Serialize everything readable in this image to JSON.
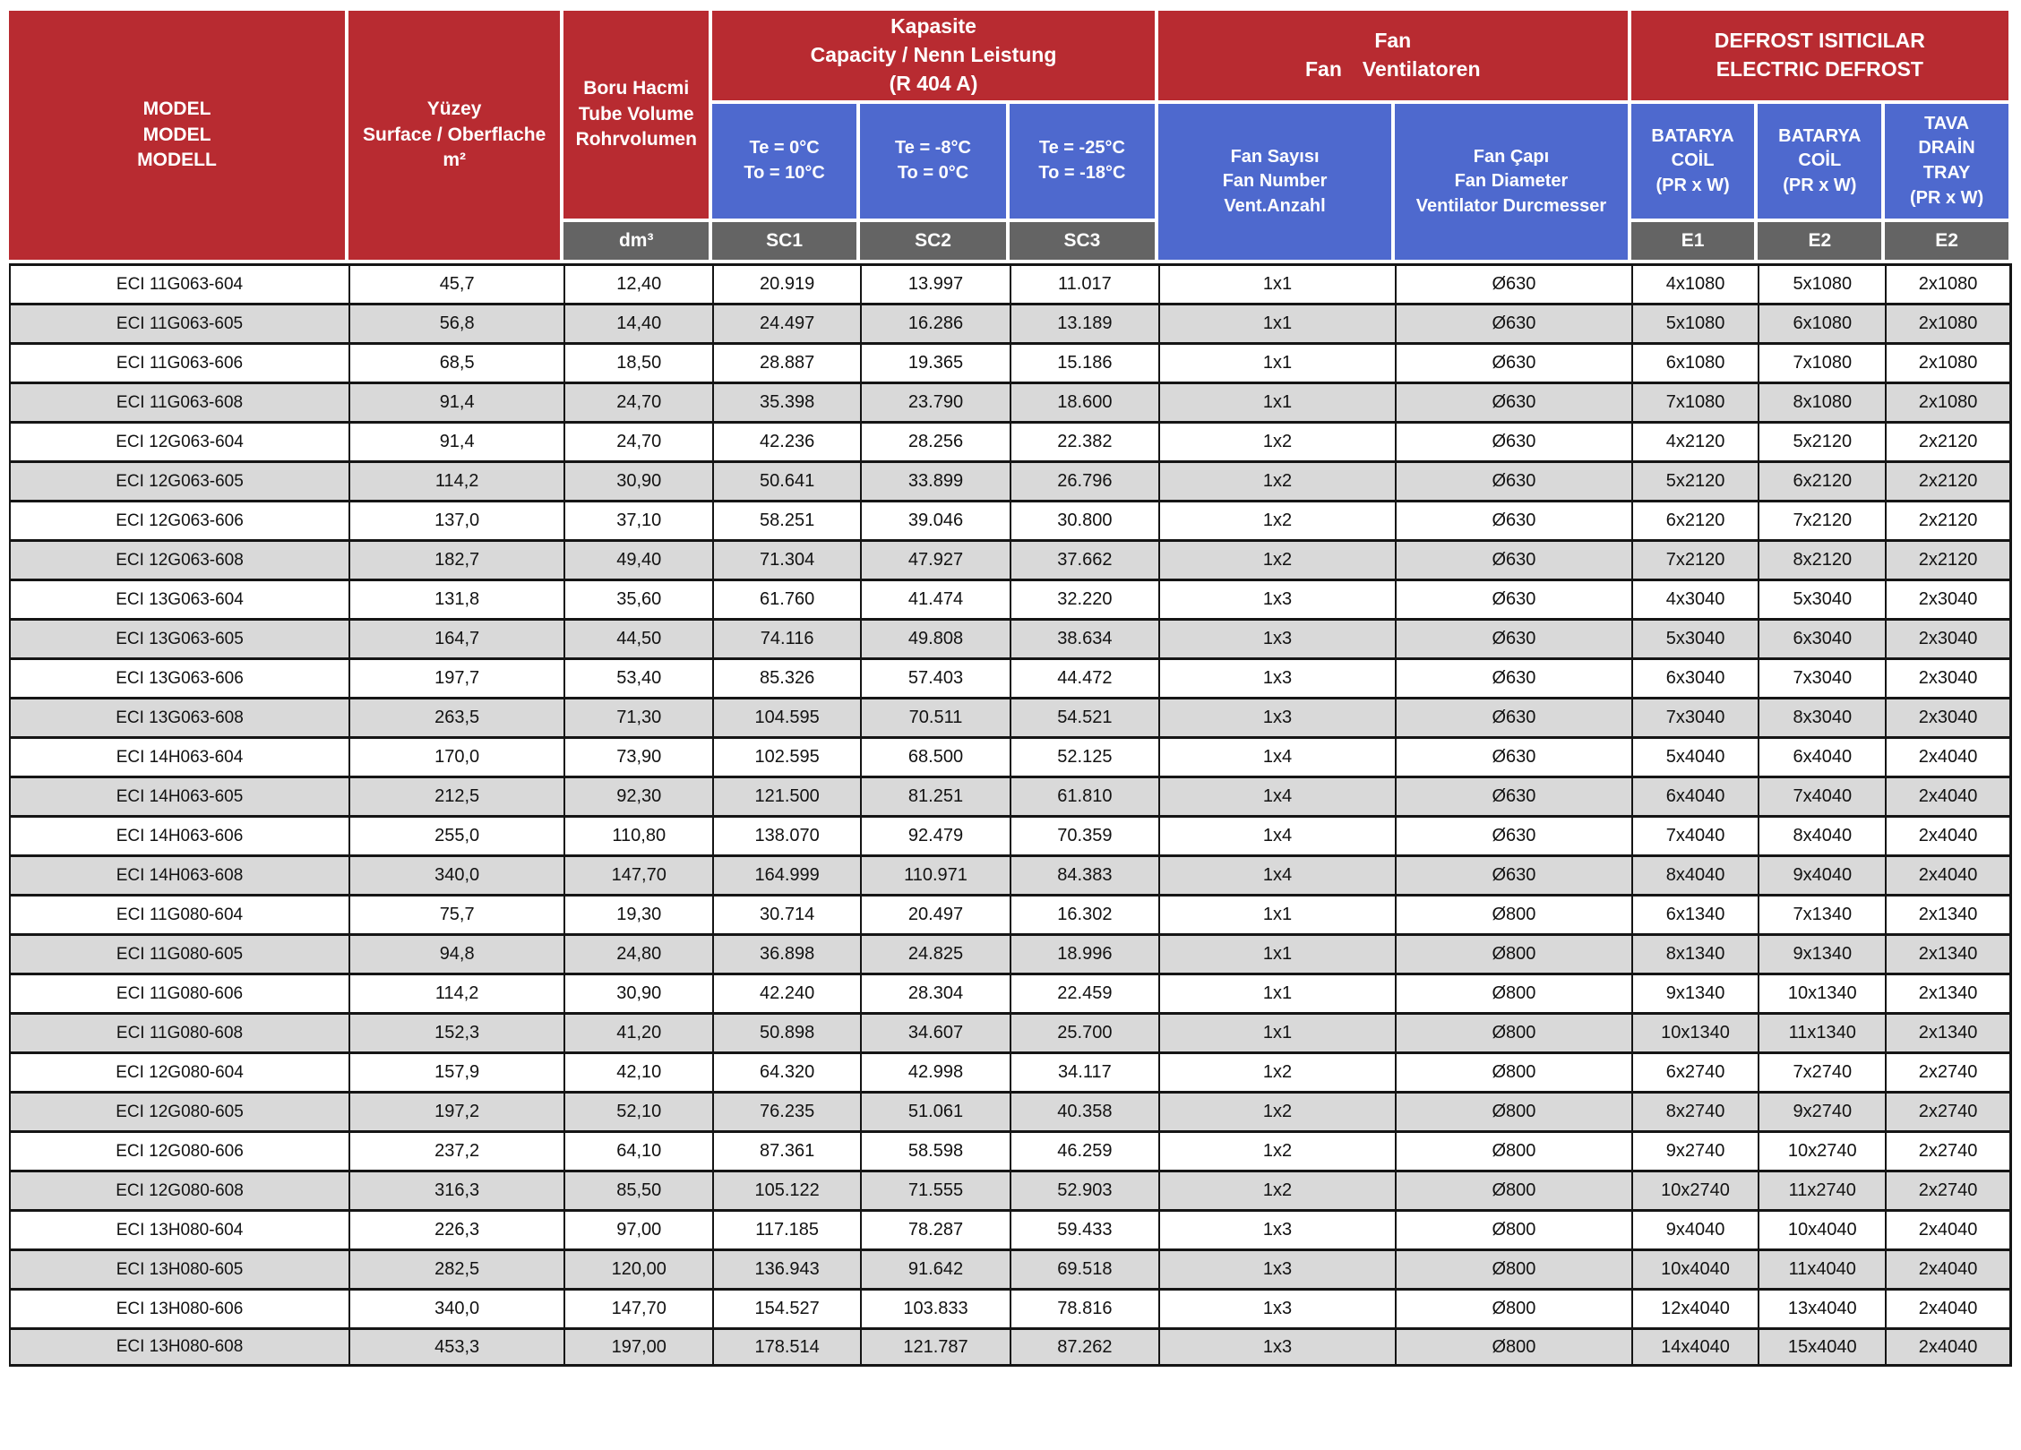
{
  "header": {
    "model": "MODEL\nMODEL\nMODELL",
    "surface": "Yüzey\nSurface / Oberflache\nm²",
    "tube_volume": "Boru Hacmi\nTube Volume\nRohrvolumen",
    "capacity_group": "Kapasite\nCapacity / Nenn Leistung\n(R 404 A)",
    "fan_group": "Fan\nFan  Ventilatoren",
    "defrost_group": "DEFROST ISITICILAR\nELECTRIC DEFROST",
    "te_sc1": "Te = 0°C\nTo = 10°C",
    "te_sc2": "Te = -8°C\nTo = 0°C",
    "te_sc3": "Te = -25°C\nTo = -18°C",
    "fan_number": "Fan Sayısı\nFan Number\nVent.Anzahl",
    "fan_diameter": "Fan Çapı\nFan Diameter\nVentilator Durcmesser",
    "coil_e1": "BATARYA\nCOİL\n(PR x W)",
    "coil_e2": "BATARYA\nCOİL\n(PR x W)",
    "tray_e2": "TAVA\nDRAİN\nTRAY\n(PR x W)",
    "units": [
      "dm³",
      "SC1",
      "SC2",
      "SC3",
      "E1",
      "E2",
      "E2"
    ]
  },
  "colors": {
    "header_red": "#b82b31",
    "header_blue": "#4e69ce",
    "header_gray": "#646464",
    "row_alt_gray": "#d9d9d9",
    "border_dark": "#151515"
  },
  "rows": [
    [
      "ECI 11G063-604",
      "45,7",
      "12,40",
      "20.919",
      "13.997",
      "11.017",
      "1x1",
      "Ø630",
      "4x1080",
      "5x1080",
      "2x1080"
    ],
    [
      "ECI 11G063-605",
      "56,8",
      "14,40",
      "24.497",
      "16.286",
      "13.189",
      "1x1",
      "Ø630",
      "5x1080",
      "6x1080",
      "2x1080"
    ],
    [
      "ECI 11G063-606",
      "68,5",
      "18,50",
      "28.887",
      "19.365",
      "15.186",
      "1x1",
      "Ø630",
      "6x1080",
      "7x1080",
      "2x1080"
    ],
    [
      "ECI 11G063-608",
      "91,4",
      "24,70",
      "35.398",
      "23.790",
      "18.600",
      "1x1",
      "Ø630",
      "7x1080",
      "8x1080",
      "2x1080"
    ],
    [
      "ECI 12G063-604",
      "91,4",
      "24,70",
      "42.236",
      "28.256",
      "22.382",
      "1x2",
      "Ø630",
      "4x2120",
      "5x2120",
      "2x2120"
    ],
    [
      "ECI 12G063-605",
      "114,2",
      "30,90",
      "50.641",
      "33.899",
      "26.796",
      "1x2",
      "Ø630",
      "5x2120",
      "6x2120",
      "2x2120"
    ],
    [
      "ECI 12G063-606",
      "137,0",
      "37,10",
      "58.251",
      "39.046",
      "30.800",
      "1x2",
      "Ø630",
      "6x2120",
      "7x2120",
      "2x2120"
    ],
    [
      "ECI 12G063-608",
      "182,7",
      "49,40",
      "71.304",
      "47.927",
      "37.662",
      "1x2",
      "Ø630",
      "7x2120",
      "8x2120",
      "2x2120"
    ],
    [
      "ECI 13G063-604",
      "131,8",
      "35,60",
      "61.760",
      "41.474",
      "32.220",
      "1x3",
      "Ø630",
      "4x3040",
      "5x3040",
      "2x3040"
    ],
    [
      "ECI 13G063-605",
      "164,7",
      "44,50",
      "74.116",
      "49.808",
      "38.634",
      "1x3",
      "Ø630",
      "5x3040",
      "6x3040",
      "2x3040"
    ],
    [
      "ECI 13G063-606",
      "197,7",
      "53,40",
      "85.326",
      "57.403",
      "44.472",
      "1x3",
      "Ø630",
      "6x3040",
      "7x3040",
      "2x3040"
    ],
    [
      "ECI 13G063-608",
      "263,5",
      "71,30",
      "104.595",
      "70.511",
      "54.521",
      "1x3",
      "Ø630",
      "7x3040",
      "8x3040",
      "2x3040"
    ],
    [
      "ECI 14H063-604",
      "170,0",
      "73,90",
      "102.595",
      "68.500",
      "52.125",
      "1x4",
      "Ø630",
      "5x4040",
      "6x4040",
      "2x4040"
    ],
    [
      "ECI 14H063-605",
      "212,5",
      "92,30",
      "121.500",
      "81.251",
      "61.810",
      "1x4",
      "Ø630",
      "6x4040",
      "7x4040",
      "2x4040"
    ],
    [
      "ECI 14H063-606",
      "255,0",
      "110,80",
      "138.070",
      "92.479",
      "70.359",
      "1x4",
      "Ø630",
      "7x4040",
      "8x4040",
      "2x4040"
    ],
    [
      "ECI 14H063-608",
      "340,0",
      "147,70",
      "164.999",
      "110.971",
      "84.383",
      "1x4",
      "Ø630",
      "8x4040",
      "9x4040",
      "2x4040"
    ],
    [
      "ECI 11G080-604",
      "75,7",
      "19,30",
      "30.714",
      "20.497",
      "16.302",
      "1x1",
      "Ø800",
      "6x1340",
      "7x1340",
      "2x1340"
    ],
    [
      "ECI 11G080-605",
      "94,8",
      "24,80",
      "36.898",
      "24.825",
      "18.996",
      "1x1",
      "Ø800",
      "8x1340",
      "9x1340",
      "2x1340"
    ],
    [
      "ECI 11G080-606",
      "114,2",
      "30,90",
      "42.240",
      "28.304",
      "22.459",
      "1x1",
      "Ø800",
      "9x1340",
      "10x1340",
      "2x1340"
    ],
    [
      "ECI 11G080-608",
      "152,3",
      "41,20",
      "50.898",
      "34.607",
      "25.700",
      "1x1",
      "Ø800",
      "10x1340",
      "11x1340",
      "2x1340"
    ],
    [
      "ECI 12G080-604",
      "157,9",
      "42,10",
      "64.320",
      "42.998",
      "34.117",
      "1x2",
      "Ø800",
      "6x2740",
      "7x2740",
      "2x2740"
    ],
    [
      "ECI 12G080-605",
      "197,2",
      "52,10",
      "76.235",
      "51.061",
      "40.358",
      "1x2",
      "Ø800",
      "8x2740",
      "9x2740",
      "2x2740"
    ],
    [
      "ECI 12G080-606",
      "237,2",
      "64,10",
      "87.361",
      "58.598",
      "46.259",
      "1x2",
      "Ø800",
      "9x2740",
      "10x2740",
      "2x2740"
    ],
    [
      "ECI 12G080-608",
      "316,3",
      "85,50",
      "105.122",
      "71.555",
      "52.903",
      "1x2",
      "Ø800",
      "10x2740",
      "11x2740",
      "2x2740"
    ],
    [
      "ECI 13H080-604",
      "226,3",
      "97,00",
      "117.185",
      "78.287",
      "59.433",
      "1x3",
      "Ø800",
      "9x4040",
      "10x4040",
      "2x4040"
    ],
    [
      "ECI 13H080-605",
      "282,5",
      "120,00",
      "136.943",
      "91.642",
      "69.518",
      "1x3",
      "Ø800",
      "10x4040",
      "11x4040",
      "2x4040"
    ],
    [
      "ECI 13H080-606",
      "340,0",
      "147,70",
      "154.527",
      "103.833",
      "78.816",
      "1x3",
      "Ø800",
      "12x4040",
      "13x4040",
      "2x4040"
    ],
    [
      "ECI 13H080-608",
      "453,3",
      "197,00",
      "178.514",
      "121.787",
      "87.262",
      "1x3",
      "Ø800",
      "14x4040",
      "15x4040",
      "2x4040"
    ]
  ]
}
